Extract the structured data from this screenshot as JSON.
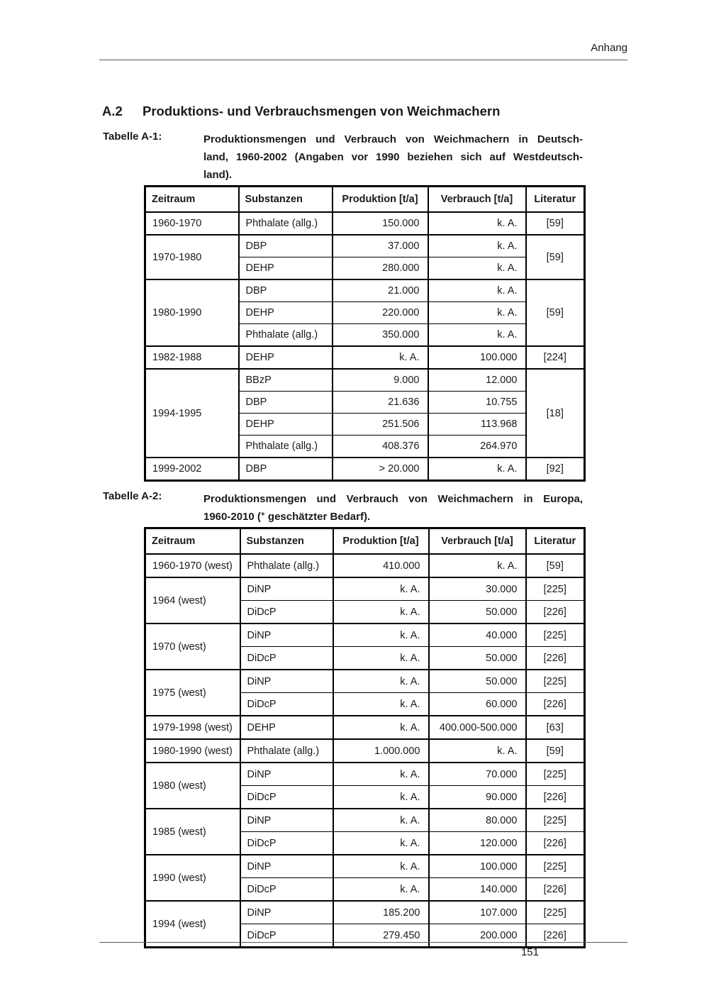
{
  "page": {
    "header": "Anhang",
    "page_number": "151"
  },
  "colors": {
    "page_background": "#ffffff",
    "text": "#1a1a1a",
    "rule": "#5a5a5a",
    "table_border": "#000000"
  },
  "section": {
    "number": "A.2",
    "title": "Produktions- und Verbrauchsmengen von Weichmachern"
  },
  "table1": {
    "label": "Tabelle A-1:",
    "caption_lines": [
      "Produktionsmengen und Verbrauch von Weichmachern in Deutsch-",
      "land, 1960-2002 (Angaben vor 1990 beziehen sich auf Westdeutsch-",
      "land)."
    ],
    "columns": [
      "Zeitraum",
      "Substanzen",
      "Produktion [t/a]",
      "Verbrauch [t/a]",
      "Literatur"
    ],
    "rows": [
      {
        "group": true,
        "cells": [
          {
            "col": 0,
            "text": "1960-1970"
          },
          {
            "col": 1,
            "text": "Phthalate (allg.)"
          },
          {
            "col": 2,
            "text": "150.000"
          },
          {
            "col": 3,
            "text": "k. A."
          },
          {
            "col": 4,
            "text": "[59]"
          }
        ]
      },
      {
        "group": true,
        "cells": [
          {
            "col": 0,
            "text": "1970-1980",
            "rs": 2
          },
          {
            "col": 1,
            "text": "DBP"
          },
          {
            "col": 2,
            "text": "37.000"
          },
          {
            "col": 3,
            "text": "k. A."
          },
          {
            "col": 4,
            "text": "[59]",
            "rs": 2
          }
        ]
      },
      {
        "group": false,
        "cells": [
          {
            "col": 1,
            "text": "DEHP"
          },
          {
            "col": 2,
            "text": "280.000"
          },
          {
            "col": 3,
            "text": "k. A."
          }
        ]
      },
      {
        "group": true,
        "cells": [
          {
            "col": 0,
            "text": "1980-1990",
            "rs": 3
          },
          {
            "col": 1,
            "text": "DBP"
          },
          {
            "col": 2,
            "text": "21.000"
          },
          {
            "col": 3,
            "text": "k. A."
          },
          {
            "col": 4,
            "text": "[59]",
            "rs": 3
          }
        ]
      },
      {
        "group": false,
        "cells": [
          {
            "col": 1,
            "text": "DEHP"
          },
          {
            "col": 2,
            "text": "220.000"
          },
          {
            "col": 3,
            "text": "k. A."
          }
        ]
      },
      {
        "group": false,
        "cells": [
          {
            "col": 1,
            "text": "Phthalate (allg.)"
          },
          {
            "col": 2,
            "text": "350.000"
          },
          {
            "col": 3,
            "text": "k. A."
          }
        ]
      },
      {
        "group": true,
        "cells": [
          {
            "col": 0,
            "text": "1982-1988"
          },
          {
            "col": 1,
            "text": "DEHP"
          },
          {
            "col": 2,
            "text": "k. A."
          },
          {
            "col": 3,
            "text": "100.000"
          },
          {
            "col": 4,
            "text": "[224]"
          }
        ]
      },
      {
        "group": true,
        "cells": [
          {
            "col": 0,
            "text": "1994-1995",
            "rs": 4
          },
          {
            "col": 1,
            "text": "BBzP"
          },
          {
            "col": 2,
            "text": "9.000"
          },
          {
            "col": 3,
            "text": "12.000"
          },
          {
            "col": 4,
            "text": "[18]",
            "rs": 4
          }
        ]
      },
      {
        "group": false,
        "cells": [
          {
            "col": 1,
            "text": "DBP"
          },
          {
            "col": 2,
            "text": "21.636"
          },
          {
            "col": 3,
            "text": "10.755"
          }
        ]
      },
      {
        "group": false,
        "cells": [
          {
            "col": 1,
            "text": "DEHP"
          },
          {
            "col": 2,
            "text": "251.506"
          },
          {
            "col": 3,
            "text": "113.968"
          }
        ]
      },
      {
        "group": false,
        "cells": [
          {
            "col": 1,
            "text": "Phthalate (allg.)"
          },
          {
            "col": 2,
            "text": "408.376"
          },
          {
            "col": 3,
            "text": "264.970"
          }
        ]
      },
      {
        "group": true,
        "cells": [
          {
            "col": 0,
            "text": "1999-2002"
          },
          {
            "col": 1,
            "text": "DBP"
          },
          {
            "col": 2,
            "text": "> 20.000"
          },
          {
            "col": 3,
            "text": "k. A."
          },
          {
            "col": 4,
            "text": "[92]"
          }
        ]
      }
    ]
  },
  "table2": {
    "label": "Tabelle A-2:",
    "caption_line1": "Produktionsmengen und Verbrauch von Weichmachern in Europa,",
    "caption_line2_pre": "1960-2010 (",
    "caption_line2_sup": "+",
    "caption_line2_post": " geschätzter Bedarf).",
    "columns": [
      "Zeitraum",
      "Substanzen",
      "Produktion [t/a]",
      "Verbrauch [t/a]",
      "Literatur"
    ],
    "rows": [
      {
        "group": true,
        "cells": [
          {
            "col": 0,
            "text": "1960-1970 (west)"
          },
          {
            "col": 1,
            "text": "Phthalate (allg.)"
          },
          {
            "col": 2,
            "text": "410.000"
          },
          {
            "col": 3,
            "text": "k. A."
          },
          {
            "col": 4,
            "text": "[59]"
          }
        ]
      },
      {
        "group": true,
        "cells": [
          {
            "col": 0,
            "text": "1964 (west)",
            "rs": 2
          },
          {
            "col": 1,
            "text": "DiNP"
          },
          {
            "col": 2,
            "text": "k. A."
          },
          {
            "col": 3,
            "text": "30.000"
          },
          {
            "col": 4,
            "text": "[225]"
          }
        ]
      },
      {
        "group": false,
        "cells": [
          {
            "col": 1,
            "text": "DiDcP"
          },
          {
            "col": 2,
            "text": "k. A."
          },
          {
            "col": 3,
            "text": "50.000"
          },
          {
            "col": 4,
            "text": "[226]"
          }
        ]
      },
      {
        "group": true,
        "cells": [
          {
            "col": 0,
            "text": "1970 (west)",
            "rs": 2
          },
          {
            "col": 1,
            "text": "DiNP"
          },
          {
            "col": 2,
            "text": "k. A."
          },
          {
            "col": 3,
            "text": "40.000"
          },
          {
            "col": 4,
            "text": "[225]"
          }
        ]
      },
      {
        "group": false,
        "cells": [
          {
            "col": 1,
            "text": "DiDcP"
          },
          {
            "col": 2,
            "text": "k. A."
          },
          {
            "col": 3,
            "text": "50.000"
          },
          {
            "col": 4,
            "text": "[226]"
          }
        ]
      },
      {
        "group": true,
        "cells": [
          {
            "col": 0,
            "text": "1975 (west)",
            "rs": 2
          },
          {
            "col": 1,
            "text": "DiNP"
          },
          {
            "col": 2,
            "text": "k. A."
          },
          {
            "col": 3,
            "text": "50.000"
          },
          {
            "col": 4,
            "text": "[225]"
          }
        ]
      },
      {
        "group": false,
        "cells": [
          {
            "col": 1,
            "text": "DiDcP"
          },
          {
            "col": 2,
            "text": "k. A."
          },
          {
            "col": 3,
            "text": "60.000"
          },
          {
            "col": 4,
            "text": "[226]"
          }
        ]
      },
      {
        "group": true,
        "cells": [
          {
            "col": 0,
            "text": "1979-1998 (west)"
          },
          {
            "col": 1,
            "text": "DEHP"
          },
          {
            "col": 2,
            "text": "k. A."
          },
          {
            "col": 3,
            "text": "400.000-500.000"
          },
          {
            "col": 4,
            "text": "[63]"
          }
        ]
      },
      {
        "group": true,
        "cells": [
          {
            "col": 0,
            "text": "1980-1990 (west)"
          },
          {
            "col": 1,
            "text": "Phthalate (allg.)"
          },
          {
            "col": 2,
            "text": "1.000.000"
          },
          {
            "col": 3,
            "text": "k. A."
          },
          {
            "col": 4,
            "text": "[59]"
          }
        ]
      },
      {
        "group": true,
        "cells": [
          {
            "col": 0,
            "text": "1980 (west)",
            "rs": 2
          },
          {
            "col": 1,
            "text": "DiNP"
          },
          {
            "col": 2,
            "text": "k. A."
          },
          {
            "col": 3,
            "text": "70.000"
          },
          {
            "col": 4,
            "text": "[225]"
          }
        ]
      },
      {
        "group": false,
        "cells": [
          {
            "col": 1,
            "text": "DiDcP"
          },
          {
            "col": 2,
            "text": "k. A."
          },
          {
            "col": 3,
            "text": "90.000"
          },
          {
            "col": 4,
            "text": "[226]"
          }
        ]
      },
      {
        "group": true,
        "cells": [
          {
            "col": 0,
            "text": "1985 (west)",
            "rs": 2
          },
          {
            "col": 1,
            "text": "DiNP"
          },
          {
            "col": 2,
            "text": "k. A."
          },
          {
            "col": 3,
            "text": "80.000"
          },
          {
            "col": 4,
            "text": "[225]"
          }
        ]
      },
      {
        "group": false,
        "cells": [
          {
            "col": 1,
            "text": "DiDcP"
          },
          {
            "col": 2,
            "text": "k. A."
          },
          {
            "col": 3,
            "text": "120.000"
          },
          {
            "col": 4,
            "text": "[226]"
          }
        ]
      },
      {
        "group": true,
        "cells": [
          {
            "col": 0,
            "text": "1990 (west)",
            "rs": 2
          },
          {
            "col": 1,
            "text": "DiNP"
          },
          {
            "col": 2,
            "text": "k. A."
          },
          {
            "col": 3,
            "text": "100.000"
          },
          {
            "col": 4,
            "text": "[225]"
          }
        ]
      },
      {
        "group": false,
        "cells": [
          {
            "col": 1,
            "text": "DiDcP"
          },
          {
            "col": 2,
            "text": "k. A."
          },
          {
            "col": 3,
            "text": "140.000"
          },
          {
            "col": 4,
            "text": "[226]"
          }
        ]
      },
      {
        "group": true,
        "cells": [
          {
            "col": 0,
            "text": "1994 (west)",
            "rs": 2
          },
          {
            "col": 1,
            "text": "DiNP"
          },
          {
            "col": 2,
            "text": "185.200"
          },
          {
            "col": 3,
            "text": "107.000"
          },
          {
            "col": 4,
            "text": "[225]"
          }
        ]
      },
      {
        "group": false,
        "cells": [
          {
            "col": 1,
            "text": "DiDcP"
          },
          {
            "col": 2,
            "text": "279.450"
          },
          {
            "col": 3,
            "text": "200.000"
          },
          {
            "col": 4,
            "text": "[226]"
          }
        ]
      }
    ]
  }
}
